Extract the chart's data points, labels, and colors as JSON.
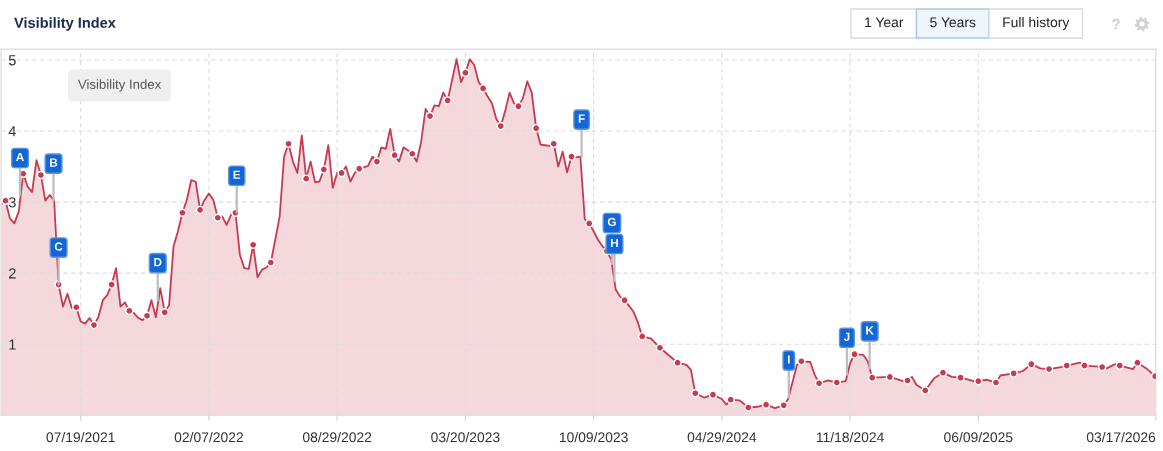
{
  "chart_data": {
    "type": "area",
    "title": "Visibility Index",
    "legend_title": "Visibility Index",
    "xlim": [
      "2021-03-15",
      "2026-03-17"
    ],
    "ylim": [
      0,
      5.15
    ],
    "xticks": [
      {
        "value": "2021-07-19",
        "label": "07/19/2021"
      },
      {
        "value": "2022-02-07",
        "label": "02/07/2022"
      },
      {
        "value": "2022-08-29",
        "label": "08/29/2022"
      },
      {
        "value": "2023-03-20",
        "label": "03/20/2023"
      },
      {
        "value": "2023-10-09",
        "label": "10/09/2023"
      },
      {
        "value": "2024-04-29",
        "label": "04/29/2024"
      },
      {
        "value": "2024-11-18",
        "label": "11/18/2024"
      },
      {
        "value": "2025-06-09",
        "label": "06/09/2025"
      },
      {
        "value": "2026-03-17",
        "label": "03/17/2026"
      }
    ],
    "yticks": [
      1,
      2,
      3,
      4,
      5
    ],
    "grid": true,
    "series": [
      {
        "color": "#c73a52",
        "x": [
          "2021-03-15",
          "2021-03-22",
          "2021-03-29",
          "2021-04-05",
          "2021-04-12",
          "2021-04-19",
          "2021-04-26",
          "2021-05-03",
          "2021-05-10",
          "2021-05-17",
          "2021-05-24",
          "2021-05-31",
          "2021-06-07",
          "2021-06-14",
          "2021-06-21",
          "2021-06-28",
          "2021-07-05",
          "2021-07-12",
          "2021-07-19",
          "2021-07-26",
          "2021-08-02",
          "2021-08-09",
          "2021-08-16",
          "2021-08-23",
          "2021-08-30",
          "2021-09-06",
          "2021-09-13",
          "2021-09-20",
          "2021-09-27",
          "2021-10-04",
          "2021-10-11",
          "2021-10-18",
          "2021-10-25",
          "2021-11-01",
          "2021-11-08",
          "2021-11-15",
          "2021-11-22",
          "2021-11-29",
          "2021-12-06",
          "2021-12-13",
          "2021-12-20",
          "2021-12-27",
          "2022-01-03",
          "2022-01-10",
          "2022-01-17",
          "2022-01-24",
          "2022-01-31",
          "2022-02-07",
          "2022-02-14",
          "2022-02-21",
          "2022-02-28",
          "2022-03-07",
          "2022-03-14",
          "2022-03-21",
          "2022-03-28",
          "2022-04-04",
          "2022-04-11",
          "2022-04-18",
          "2022-04-25",
          "2022-05-02",
          "2022-05-09",
          "2022-05-16",
          "2022-05-23",
          "2022-05-30",
          "2022-06-06",
          "2022-06-13",
          "2022-06-20",
          "2022-06-27",
          "2022-07-04",
          "2022-07-11",
          "2022-07-18",
          "2022-07-25",
          "2022-08-01",
          "2022-08-08",
          "2022-08-15",
          "2022-08-22",
          "2022-08-29",
          "2022-09-05",
          "2022-09-12",
          "2022-09-19",
          "2022-09-26",
          "2022-10-03",
          "2022-10-10",
          "2022-10-17",
          "2022-10-24",
          "2022-10-31",
          "2022-11-07",
          "2022-11-14",
          "2022-11-21",
          "2022-11-28",
          "2022-12-05",
          "2022-12-12",
          "2022-12-19",
          "2022-12-26",
          "2023-01-02",
          "2023-01-09",
          "2023-01-16",
          "2023-01-23",
          "2023-01-30",
          "2023-02-06",
          "2023-02-13",
          "2023-02-20",
          "2023-02-27",
          "2023-03-06",
          "2023-03-13",
          "2023-03-20",
          "2023-03-27",
          "2023-04-03",
          "2023-04-10",
          "2023-04-17",
          "2023-04-24",
          "2023-05-01",
          "2023-05-08",
          "2023-05-15",
          "2023-05-22",
          "2023-05-29",
          "2023-06-05",
          "2023-06-12",
          "2023-06-19",
          "2023-06-26",
          "2023-07-03",
          "2023-07-10",
          "2023-07-17",
          "2023-07-24",
          "2023-07-31",
          "2023-08-07",
          "2023-08-14",
          "2023-08-21",
          "2023-08-28",
          "2023-09-04",
          "2023-09-11",
          "2023-09-18",
          "2023-09-25",
          "2023-10-02",
          "2023-10-09",
          "2023-10-16",
          "2023-10-23",
          "2023-10-30",
          "2023-11-06",
          "2023-11-13",
          "2023-11-20",
          "2023-11-27",
          "2023-12-11",
          "2023-12-18",
          "2023-12-25",
          "2024-01-08",
          "2024-01-22",
          "2024-02-19",
          "2024-03-04",
          "2024-03-11",
          "2024-03-18",
          "2024-04-01",
          "2024-04-15",
          "2024-04-29",
          "2024-05-06",
          "2024-05-13",
          "2024-05-27",
          "2024-06-10",
          "2024-06-24",
          "2024-07-08",
          "2024-07-22",
          "2024-08-05",
          "2024-08-12",
          "2024-08-26",
          "2024-09-02",
          "2024-09-16",
          "2024-09-23",
          "2024-09-30",
          "2024-10-14",
          "2024-10-28",
          "2024-11-11",
          "2024-11-18",
          "2024-11-25",
          "2024-12-09",
          "2024-12-16",
          "2024-12-23",
          "2025-01-20",
          "2025-02-10",
          "2025-02-17",
          "2025-02-24",
          "2025-03-03",
          "2025-03-17",
          "2025-03-31",
          "2025-04-14",
          "2025-04-28",
          "2025-05-12",
          "2025-06-02",
          "2025-06-09",
          "2025-06-23",
          "2025-07-07",
          "2025-07-14",
          "2025-08-04",
          "2025-08-18",
          "2025-09-01",
          "2025-09-15",
          "2025-09-29",
          "2025-10-20",
          "2025-10-27",
          "2025-11-17",
          "2025-11-24",
          "2025-12-22",
          "2025-12-29",
          "2026-01-12",
          "2026-01-19",
          "2026-02-09",
          "2026-02-16",
          "2026-03-02",
          "2026-03-16"
        ],
        "values": [
          2.97,
          3.02,
          2.77,
          2.7,
          2.87,
          3.4,
          3.22,
          3.14,
          3.59,
          3.38,
          3.02,
          3.1,
          3.02,
          1.84,
          1.53,
          1.71,
          1.51,
          1.52,
          1.32,
          1.29,
          1.37,
          1.27,
          1.38,
          1.62,
          1.69,
          1.84,
          2.07,
          1.53,
          1.59,
          1.47,
          1.44,
          1.37,
          1.34,
          1.4,
          1.62,
          1.38,
          1.79,
          1.45,
          1.55,
          2.38,
          2.59,
          2.85,
          3.03,
          3.31,
          3.29,
          2.89,
          3.03,
          3.12,
          3.03,
          2.78,
          2.8,
          2.68,
          2.82,
          2.85,
          2.26,
          2.07,
          2.06,
          2.4,
          1.94,
          2.05,
          2.08,
          2.15,
          2.47,
          2.8,
          3.64,
          3.82,
          3.57,
          3.41,
          3.94,
          3.33,
          3.57,
          3.28,
          3.29,
          3.46,
          3.8,
          3.2,
          3.41,
          3.41,
          3.5,
          3.29,
          3.41,
          3.47,
          3.49,
          3.51,
          3.64,
          3.57,
          3.77,
          3.75,
          4.03,
          3.66,
          3.57,
          3.77,
          3.73,
          3.68,
          3.57,
          3.85,
          4.31,
          4.21,
          4.36,
          4.35,
          4.54,
          4.43,
          4.72,
          5.01,
          4.69,
          4.82,
          5.01,
          4.93,
          4.69,
          4.6,
          4.49,
          4.39,
          4.17,
          4.07,
          4.28,
          4.54,
          4.39,
          4.35,
          4.46,
          4.7,
          4.54,
          4.04,
          3.81,
          3.8,
          3.79,
          3.82,
          3.5,
          3.71,
          3.42,
          3.64,
          3.63,
          3.64,
          2.76,
          2.7,
          2.59,
          2.47,
          2.38,
          2.31,
          2.19,
          1.77,
          1.67,
          1.62,
          1.46,
          1.31,
          1.11,
          1.08,
          0.95,
          0.74,
          0.71,
          0.64,
          0.31,
          0.25,
          0.29,
          0.23,
          0.15,
          0.22,
          0.21,
          0.11,
          0.12,
          0.15,
          0.1,
          0.14,
          0.23,
          0.71,
          0.76,
          0.75,
          0.57,
          0.45,
          0.49,
          0.46,
          0.48,
          0.73,
          0.86,
          0.85,
          0.76,
          0.53,
          0.54,
          0.48,
          0.49,
          0.54,
          0.43,
          0.35,
          0.52,
          0.6,
          0.54,
          0.53,
          0.48,
          0.48,
          0.5,
          0.46,
          0.56,
          0.59,
          0.62,
          0.72,
          0.66,
          0.65,
          0.68,
          0.7,
          0.74,
          0.7,
          0.68,
          0.66,
          0.72,
          0.7,
          0.65,
          0.74,
          0.66,
          0.55
        ]
      },
      {
        "type": "scatter",
        "marker": "circle",
        "color": "#c73a52",
        "x": [
          "2021-03-22",
          "2021-04-19",
          "2021-05-17",
          "2021-06-14",
          "2021-07-12",
          "2021-08-09",
          "2021-09-06",
          "2021-10-04",
          "2021-11-01",
          "2021-11-29",
          "2021-12-27",
          "2022-01-24",
          "2022-02-21",
          "2022-03-21",
          "2022-04-18",
          "2022-05-16",
          "2022-06-13",
          "2022-07-11",
          "2022-08-08",
          "2022-09-05",
          "2022-10-03",
          "2022-10-31",
          "2022-11-28",
          "2022-12-26",
          "2023-01-23",
          "2023-02-20",
          "2023-03-20",
          "2023-04-17",
          "2023-05-15",
          "2023-06-12",
          "2023-07-10",
          "2023-08-07",
          "2023-09-04",
          "2023-10-02",
          "2023-10-30",
          "2023-11-27",
          "2023-12-25",
          "2024-01-22",
          "2024-02-19",
          "2024-03-18",
          "2024-04-15",
          "2024-05-13",
          "2024-06-10",
          "2024-07-08",
          "2024-08-05",
          "2024-09-02",
          "2024-09-30",
          "2024-10-28",
          "2024-11-25",
          "2024-12-23",
          "2025-01-20",
          "2025-02-17",
          "2025-03-17",
          "2025-04-14",
          "2025-05-12",
          "2025-06-09",
          "2025-07-07",
          "2025-08-04",
          "2025-09-01",
          "2025-09-29",
          "2025-10-27",
          "2025-11-24",
          "2025-12-22",
          "2026-01-19",
          "2026-02-16",
          "2026-03-16"
        ],
        "values": [
          3.02,
          3.4,
          3.38,
          1.84,
          1.52,
          1.27,
          1.84,
          1.47,
          1.4,
          1.45,
          2.85,
          2.89,
          2.78,
          2.85,
          2.4,
          2.15,
          3.82,
          3.33,
          3.46,
          3.41,
          3.47,
          3.57,
          3.66,
          3.68,
          4.21,
          4.43,
          4.82,
          4.6,
          4.07,
          4.35,
          4.04,
          3.82,
          3.64,
          2.7,
          2.31,
          1.62,
          1.11,
          0.95,
          0.74,
          0.31,
          0.29,
          0.22,
          0.11,
          0.15,
          0.14,
          0.76,
          0.45,
          0.46,
          0.86,
          0.53,
          0.54,
          0.49,
          0.35,
          0.6,
          0.53,
          0.48,
          0.46,
          0.59,
          0.72,
          0.65,
          0.7,
          0.7,
          0.68,
          0.7,
          0.74,
          0.55
        ]
      }
    ],
    "annotations": [
      {
        "text": "A",
        "x": "2021-04-14",
        "y": 3.1
      },
      {
        "text": "B",
        "x": "2021-06-06",
        "y": 3.02
      },
      {
        "text": "C",
        "x": "2021-06-14",
        "y": 1.84
      },
      {
        "text": "D",
        "x": "2021-11-18",
        "y": 1.62
      },
      {
        "text": "E",
        "x": "2022-03-23",
        "y": 2.85
      },
      {
        "text": "F",
        "x": "2023-09-20",
        "y": 3.64
      },
      {
        "text": "G",
        "x": "2023-11-07",
        "y": 2.13
      },
      {
        "text": "H",
        "x": "2023-11-11",
        "y": 1.89
      },
      {
        "text": "I",
        "x": "2024-08-13",
        "y": 0.25
      },
      {
        "text": "J",
        "x": "2024-11-13",
        "y": 0.57
      },
      {
        "text": "K",
        "x": "2024-12-19",
        "y": 0.66
      },
      "1 Year",
      "5 Years",
      "Full history"
    ]
  }
}
